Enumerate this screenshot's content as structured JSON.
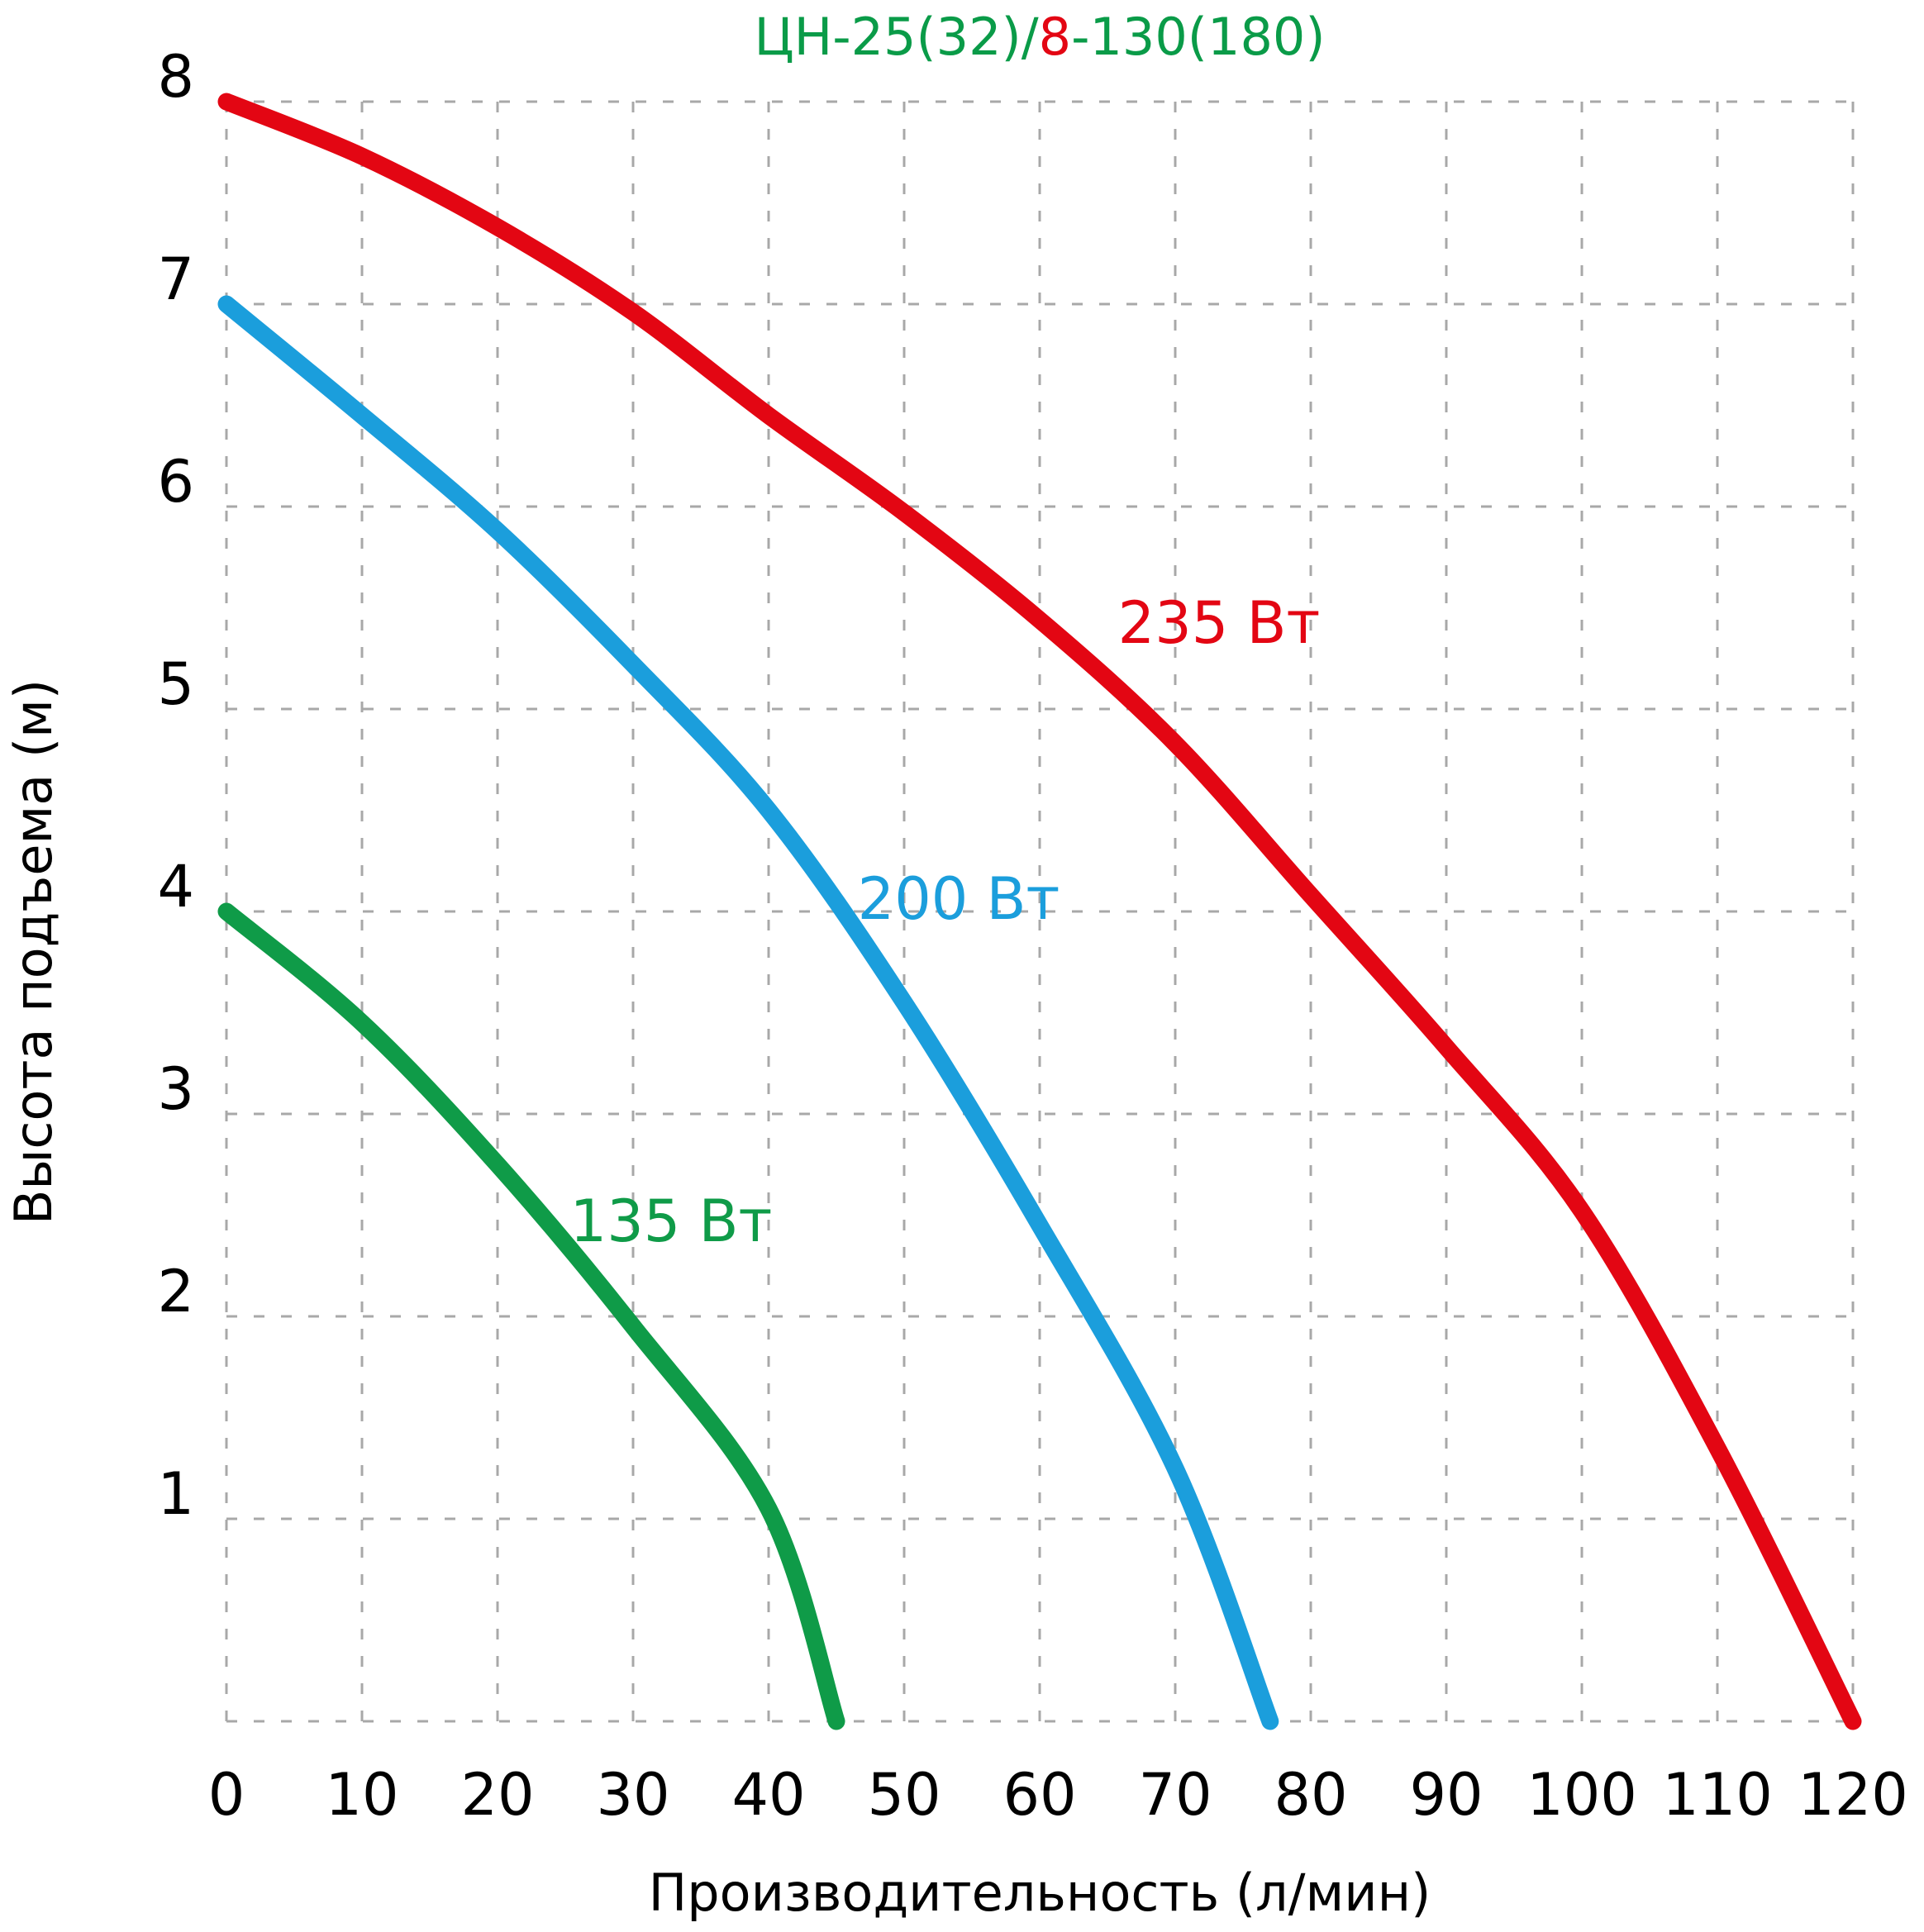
{
  "page": {
    "background": "#ffffff"
  },
  "chart_data": {
    "type": "line",
    "title": "ЦН-25(32)/8-130(180)",
    "title_segments": [
      {
        "text": "ЦН-25(32)/",
        "color": "#0a9b48"
      },
      {
        "text": "8",
        "color": "#e30613"
      },
      {
        "text": "-130(180)",
        "color": "#0a9b48"
      }
    ],
    "xlabel": "Производительность (л/мин)",
    "ylabel": "Высота подъема (м)",
    "xlim": [
      0,
      120
    ],
    "ylim": [
      0,
      8
    ],
    "x_ticks": [
      0,
      10,
      20,
      30,
      40,
      50,
      60,
      70,
      80,
      90,
      100,
      110,
      120
    ],
    "y_tick_labels": [
      8,
      7,
      6,
      5,
      4,
      3,
      2,
      1
    ],
    "y_grid_values": [
      0,
      1,
      2,
      3,
      4,
      5,
      6,
      7,
      8
    ],
    "grid": "dashed gray, horizontal and vertical, no solid axes",
    "legend_position": "inline colored labels next to curves",
    "series": [
      {
        "name": "235 Вт",
        "color": "#e30613",
        "points": [
          [
            0,
            8.0
          ],
          [
            10,
            7.73
          ],
          [
            20,
            7.38
          ],
          [
            30,
            6.96
          ],
          [
            40,
            6.45
          ],
          [
            50,
            5.97
          ],
          [
            60,
            5.44
          ],
          [
            70,
            4.83
          ],
          [
            80,
            4.08
          ],
          [
            90,
            3.33
          ],
          [
            100,
            2.52
          ],
          [
            110,
            1.35
          ],
          [
            120,
            0
          ]
        ]
      },
      {
        "name": "200 Вт",
        "color": "#1b9edc",
        "points": [
          [
            0,
            7.0
          ],
          [
            10,
            6.45
          ],
          [
            20,
            5.88
          ],
          [
            30,
            5.22
          ],
          [
            40,
            4.5
          ],
          [
            50,
            3.55
          ],
          [
            60,
            2.45
          ],
          [
            70,
            1.25
          ],
          [
            77,
            0
          ]
        ]
      },
      {
        "name": "135 Вт",
        "color": "#0f9b48",
        "points": [
          [
            0,
            4.0
          ],
          [
            10,
            3.45
          ],
          [
            20,
            2.75
          ],
          [
            30,
            1.95
          ],
          [
            40,
            1.05
          ],
          [
            45,
            0
          ]
        ]
      }
    ]
  }
}
